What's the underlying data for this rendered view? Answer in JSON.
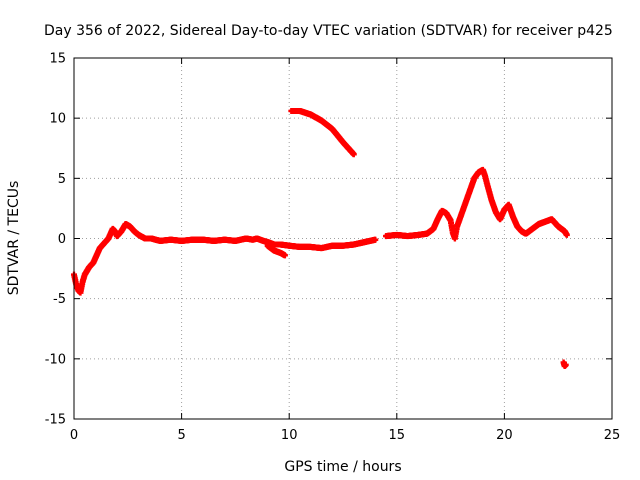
{
  "chart_data": {
    "type": "scatter",
    "title": "Day 356 of 2022, Sidereal Day-to-day VTEC variation (SDTVAR) for receiver p425",
    "xlabel": "GPS time / hours",
    "ylabel": "SDTVAR / TECUs",
    "xlim": [
      0,
      25
    ],
    "ylim": [
      -15,
      15
    ],
    "xticks": [
      "0",
      "5",
      "10",
      "15",
      "20",
      "25"
    ],
    "yticks": [
      "15",
      "10",
      "5",
      "0",
      "-5",
      "-10",
      "-15"
    ],
    "grid": true,
    "marker": "plus",
    "series": [
      {
        "name": "SDTVAR",
        "color": "#ff0000",
        "segments": [
          [
            [
              0.0,
              -3.0
            ],
            [
              0.1,
              -3.8
            ],
            [
              0.2,
              -4.3
            ],
            [
              0.3,
              -4.5
            ],
            [
              0.4,
              -3.6
            ],
            [
              0.5,
              -3.0
            ],
            [
              0.6,
              -2.7
            ],
            [
              0.7,
              -2.4
            ],
            [
              0.8,
              -2.2
            ],
            [
              0.9,
              -2.0
            ],
            [
              1.0,
              -1.6
            ],
            [
              1.1,
              -1.2
            ],
            [
              1.2,
              -0.8
            ],
            [
              1.3,
              -0.6
            ],
            [
              1.4,
              -0.4
            ],
            [
              1.5,
              -0.2
            ],
            [
              1.6,
              0.0
            ],
            [
              1.7,
              0.4
            ],
            [
              1.8,
              0.8
            ],
            [
              1.9,
              0.6
            ],
            [
              2.0,
              0.2
            ],
            [
              2.2,
              0.6
            ],
            [
              2.4,
              1.2
            ],
            [
              2.6,
              1.0
            ],
            [
              2.8,
              0.6
            ],
            [
              3.0,
              0.3
            ],
            [
              3.3,
              0.0
            ],
            [
              3.6,
              0.0
            ],
            [
              4.0,
              -0.2
            ],
            [
              4.5,
              -0.1
            ],
            [
              5.0,
              -0.2
            ],
            [
              5.5,
              -0.1
            ],
            [
              6.0,
              -0.1
            ],
            [
              6.5,
              -0.2
            ],
            [
              7.0,
              -0.1
            ],
            [
              7.5,
              -0.2
            ],
            [
              8.0,
              0.0
            ],
            [
              8.3,
              -0.1
            ],
            [
              8.5,
              0.0
            ],
            [
              8.8,
              -0.2
            ],
            [
              9.0,
              -0.3
            ],
            [
              9.3,
              -0.5
            ],
            [
              9.6,
              -0.5
            ],
            [
              10.0,
              -0.6
            ],
            [
              10.5,
              -0.7
            ],
            [
              11.0,
              -0.7
            ],
            [
              11.5,
              -0.8
            ],
            [
              12.0,
              -0.6
            ],
            [
              12.5,
              -0.6
            ],
            [
              13.0,
              -0.5
            ],
            [
              13.5,
              -0.3
            ],
            [
              14.0,
              -0.1
            ]
          ],
          [
            [
              9.0,
              -0.6
            ],
            [
              9.3,
              -1.0
            ],
            [
              9.6,
              -1.2
            ],
            [
              9.8,
              -1.4
            ]
          ],
          [
            [
              10.1,
              10.6
            ],
            [
              10.5,
              10.6
            ],
            [
              11.0,
              10.3
            ],
            [
              11.5,
              9.8
            ],
            [
              12.0,
              9.1
            ],
            [
              12.5,
              8.0
            ],
            [
              13.0,
              7.0
            ]
          ],
          [
            [
              14.5,
              0.2
            ],
            [
              15.0,
              0.3
            ],
            [
              15.5,
              0.2
            ],
            [
              16.0,
              0.3
            ],
            [
              16.4,
              0.4
            ],
            [
              16.7,
              0.8
            ],
            [
              16.9,
              1.6
            ],
            [
              17.1,
              2.3
            ],
            [
              17.3,
              2.1
            ],
            [
              17.5,
              1.5
            ],
            [
              17.6,
              0.5
            ],
            [
              17.7,
              0.0
            ],
            [
              17.8,
              1.0
            ],
            [
              18.0,
              2.0
            ],
            [
              18.2,
              3.0
            ],
            [
              18.4,
              4.0
            ],
            [
              18.6,
              5.0
            ],
            [
              18.8,
              5.5
            ],
            [
              19.0,
              5.7
            ],
            [
              19.1,
              5.2
            ],
            [
              19.2,
              4.5
            ],
            [
              19.4,
              3.2
            ],
            [
              19.6,
              2.2
            ],
            [
              19.8,
              1.6
            ],
            [
              20.0,
              2.4
            ],
            [
              20.2,
              2.8
            ],
            [
              20.4,
              1.8
            ],
            [
              20.6,
              1.0
            ],
            [
              20.8,
              0.6
            ],
            [
              21.0,
              0.4
            ],
            [
              21.3,
              0.8
            ],
            [
              21.6,
              1.2
            ],
            [
              21.9,
              1.4
            ],
            [
              22.2,
              1.6
            ],
            [
              22.5,
              1.0
            ],
            [
              22.8,
              0.6
            ],
            [
              22.9,
              0.3
            ]
          ],
          [
            [
              22.75,
              -10.3
            ],
            [
              22.8,
              -10.6
            ],
            [
              22.85,
              -10.5
            ]
          ]
        ]
      }
    ]
  }
}
